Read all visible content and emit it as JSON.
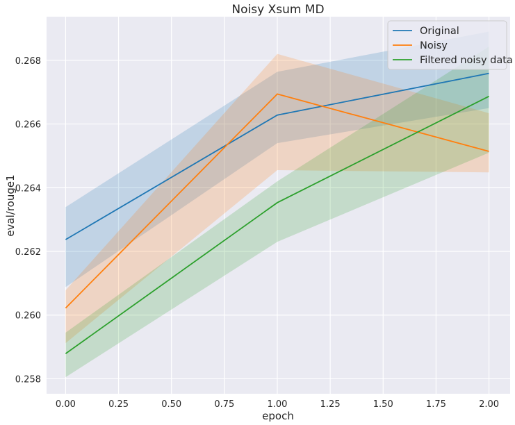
{
  "chart_data": {
    "type": "line",
    "title": "Noisy Xsum MD",
    "xlabel": "epoch",
    "ylabel": "eval/rouge1",
    "xlim": [
      -0.09,
      2.1
    ],
    "ylim": [
      0.25753,
      0.26937
    ],
    "xticks": [
      0.0,
      0.25,
      0.5,
      0.75,
      1.0,
      1.25,
      1.5,
      1.75,
      2.0
    ],
    "xtick_labels": [
      "0.00",
      "0.25",
      "0.50",
      "0.75",
      "1.00",
      "1.25",
      "1.50",
      "1.75",
      "2.00"
    ],
    "yticks": [
      0.258,
      0.26,
      0.262,
      0.264,
      0.266,
      0.268
    ],
    "ytick_labels": [
      "0.258",
      "0.260",
      "0.262",
      "0.264",
      "0.266",
      "0.268"
    ],
    "grid": true,
    "legend_position": "top-right",
    "x": [
      0,
      1,
      2
    ],
    "series": [
      {
        "name": "Original",
        "color": "#1f77b4",
        "values": [
          0.26237,
          0.26628,
          0.26759
        ],
        "ci_low": [
          0.26088,
          0.2654,
          0.2665
        ],
        "ci_high": [
          0.26339,
          0.26764,
          0.2689
        ]
      },
      {
        "name": "Noisy",
        "color": "#ff7f0e",
        "values": [
          0.26022,
          0.26694,
          0.26514
        ],
        "ci_low": [
          0.25912,
          0.26455,
          0.26448
        ],
        "ci_high": [
          0.26078,
          0.2682,
          0.26634
        ]
      },
      {
        "name": "Filtered noisy data",
        "color": "#2ca02c",
        "values": [
          0.25879,
          0.26353,
          0.26687
        ],
        "ci_low": [
          0.25805,
          0.2623,
          0.2651
        ],
        "ci_high": [
          0.25945,
          0.2642,
          0.26843
        ]
      }
    ]
  }
}
